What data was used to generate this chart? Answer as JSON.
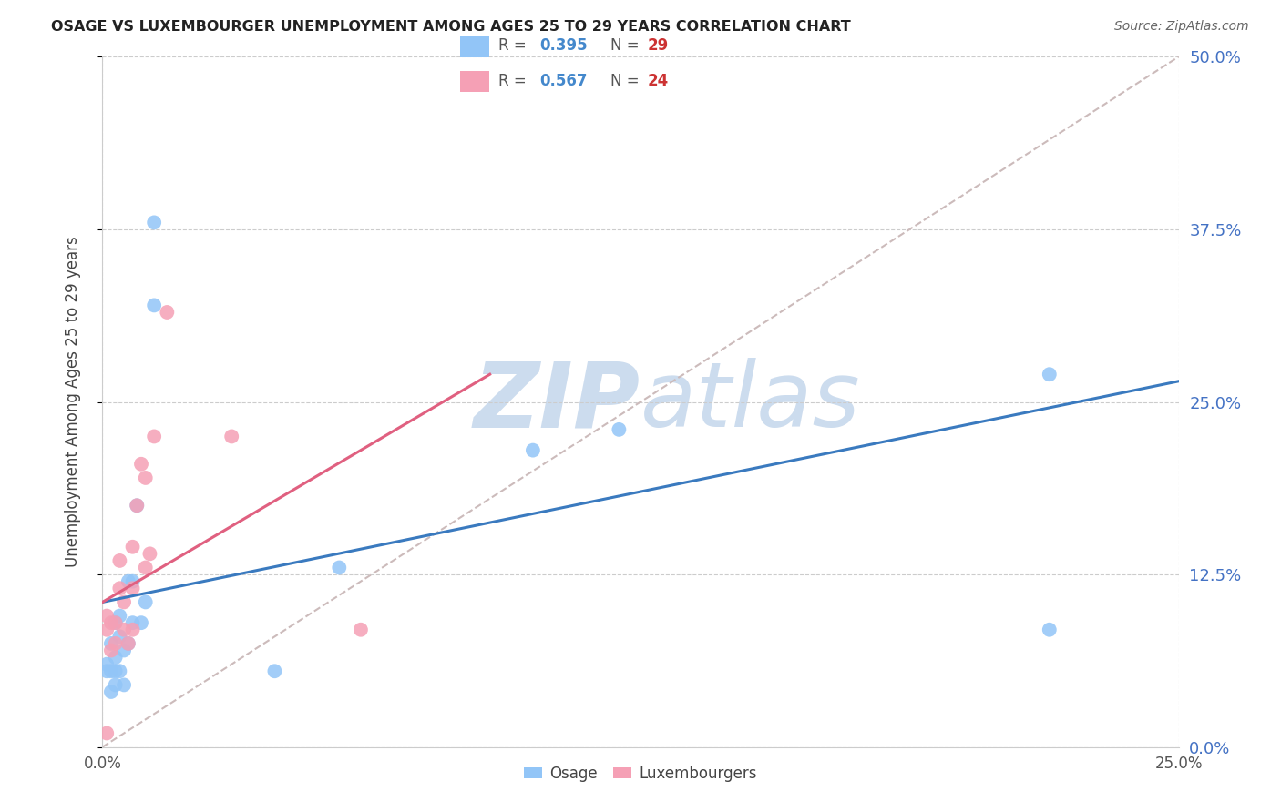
{
  "title": "OSAGE VS LUXEMBOURGER UNEMPLOYMENT AMONG AGES 25 TO 29 YEARS CORRELATION CHART",
  "source": "Source: ZipAtlas.com",
  "ylabel": "Unemployment Among Ages 25 to 29 years",
  "xlim": [
    0.0,
    0.25
  ],
  "ylim": [
    0.0,
    0.5
  ],
  "yticks": [
    0.0,
    0.125,
    0.25,
    0.375,
    0.5
  ],
  "xticks": [
    0.0,
    0.25
  ],
  "osage_R": 0.395,
  "osage_N": 29,
  "lux_R": 0.567,
  "lux_N": 24,
  "osage_color": "#92c5f7",
  "lux_color": "#f5a0b5",
  "osage_line_color": "#3a7abf",
  "lux_line_color": "#e06080",
  "diag_line_color": "#ccbbbb",
  "background_color": "#ffffff",
  "watermark_color": "#ccdcee",
  "legend_box_color": "#e8f0fb",
  "legend_edge_color": "#aabbdd",
  "osage_x": [
    0.001,
    0.001,
    0.002,
    0.002,
    0.002,
    0.003,
    0.003,
    0.003,
    0.003,
    0.004,
    0.004,
    0.004,
    0.005,
    0.005,
    0.006,
    0.006,
    0.007,
    0.007,
    0.008,
    0.009,
    0.01,
    0.012,
    0.012,
    0.04,
    0.055,
    0.1,
    0.12,
    0.22,
    0.22
  ],
  "osage_y": [
    0.055,
    0.06,
    0.04,
    0.055,
    0.075,
    0.045,
    0.055,
    0.065,
    0.09,
    0.055,
    0.08,
    0.095,
    0.045,
    0.07,
    0.075,
    0.12,
    0.09,
    0.12,
    0.175,
    0.09,
    0.105,
    0.38,
    0.32,
    0.055,
    0.13,
    0.215,
    0.23,
    0.27,
    0.085
  ],
  "lux_x": [
    0.001,
    0.001,
    0.002,
    0.002,
    0.003,
    0.003,
    0.004,
    0.004,
    0.005,
    0.005,
    0.006,
    0.007,
    0.007,
    0.007,
    0.008,
    0.009,
    0.01,
    0.01,
    0.011,
    0.012,
    0.015,
    0.03,
    0.06,
    0.001
  ],
  "lux_y": [
    0.085,
    0.095,
    0.07,
    0.09,
    0.075,
    0.09,
    0.115,
    0.135,
    0.085,
    0.105,
    0.075,
    0.085,
    0.115,
    0.145,
    0.175,
    0.205,
    0.13,
    0.195,
    0.14,
    0.225,
    0.315,
    0.225,
    0.085,
    0.01
  ],
  "osage_trend_x": [
    0.0,
    0.25
  ],
  "osage_trend_y": [
    0.105,
    0.265
  ],
  "lux_trend_x": [
    0.0,
    0.09
  ],
  "lux_trend_y": [
    0.105,
    0.27
  ]
}
